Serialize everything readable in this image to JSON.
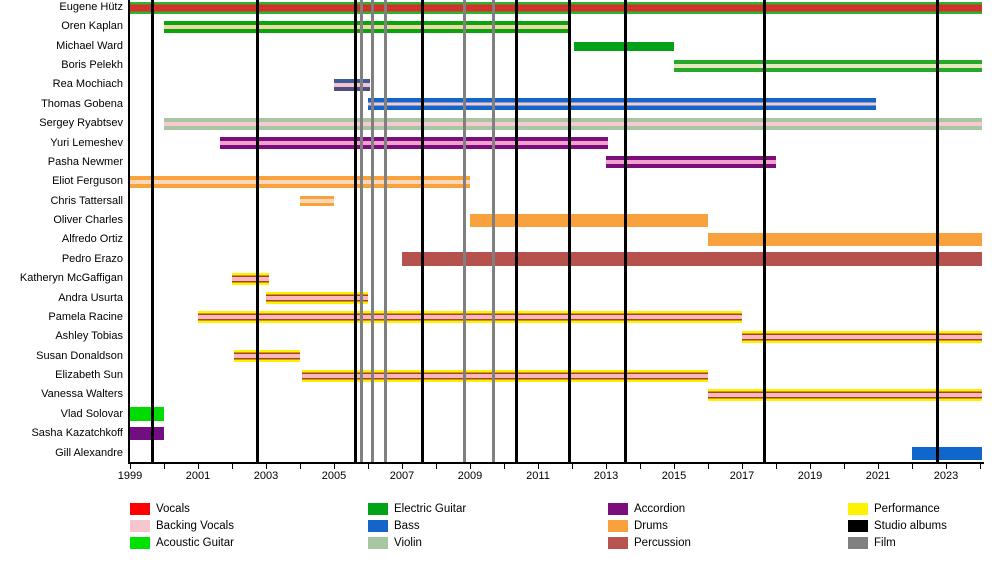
{
  "chart_data": {
    "type": "timeline",
    "description": "Band membership timeline chart, years on x-axis, members on y-axis",
    "x_axis": {
      "min_year": 1999,
      "max_year": 2024.06,
      "tick_interval_years": 1,
      "label_years": [
        1999,
        2001,
        2003,
        2005,
        2007,
        2009,
        2011,
        2013,
        2015,
        2017,
        2019,
        2021,
        2023
      ]
    },
    "members": [
      {
        "name": "Eugene Hütz",
        "from": 1999.0,
        "to": 2024.06,
        "stripes": [
          [
            "#2EB42E",
            2.5
          ],
          [
            "#D1302B",
            7
          ],
          [
            "#2EB42E",
            2.5
          ]
        ]
      },
      {
        "name": "Oren Kaplan",
        "from": 2000.0,
        "to": 2011.9,
        "stripes": [
          [
            "#0CA40C",
            4
          ],
          [
            "#EDD9A8",
            4
          ],
          [
            "#0CA40C",
            4
          ]
        ]
      },
      {
        "name": "Michael Ward",
        "from": 2012.05,
        "to": 2015.0,
        "stripes": [
          [
            "#00A317",
            9
          ]
        ]
      },
      {
        "name": "Boris Pelekh",
        "from": 2015.0,
        "to": 2024.06,
        "stripes": [
          [
            "#28A828",
            4
          ],
          [
            "#E6E9BD",
            4
          ],
          [
            "#28A828",
            4
          ]
        ]
      },
      {
        "name": "Rea Mochiach",
        "from": 2005.0,
        "to": 2006.05,
        "stripes": [
          [
            "#3C5C9E",
            4
          ],
          [
            "#F3C3CA",
            4
          ],
          [
            "#4E4E86",
            4
          ]
        ]
      },
      {
        "name": "Thomas Gobena",
        "from": 2006.0,
        "to": 2020.95,
        "stripes": [
          [
            "#1465C8",
            4.5
          ],
          [
            "#F4CBD2",
            3
          ],
          [
            "#1465C8",
            4.5
          ]
        ]
      },
      {
        "name": "Sergey Ryabtsev",
        "from": 2000.0,
        "to": 2024.06,
        "stripes": [
          [
            "#A8C6A2",
            4
          ],
          [
            "#F7C9D1",
            4
          ],
          [
            "#A8C6A2",
            4
          ]
        ]
      },
      {
        "name": "Yuri Lemeshev",
        "from": 2001.65,
        "to": 2013.05,
        "stripes": [
          [
            "#7C0E7C",
            4
          ],
          [
            "#F2A0CE",
            4
          ],
          [
            "#7C0E7C",
            4
          ]
        ]
      },
      {
        "name": "Pasha Newmer",
        "from": 2013.0,
        "to": 2018.0,
        "stripes": [
          [
            "#7C0E7C",
            4
          ],
          [
            "#F2A0CE",
            4
          ],
          [
            "#7C0E7C",
            4
          ]
        ]
      },
      {
        "name": "Eliot Ferguson",
        "from": 1999.0,
        "to": 2009.0,
        "stripes": [
          [
            "#F9A13C",
            4
          ],
          [
            "#FBD9B8",
            4
          ],
          [
            "#F9A13C",
            4
          ]
        ]
      },
      {
        "name": "Chris Tattersall",
        "from": 2004.0,
        "to": 2005.0,
        "stripes": [
          [
            "#F9A13C",
            3
          ],
          [
            "#FBD9B8",
            4
          ],
          [
            "#F9A13C",
            3
          ]
        ]
      },
      {
        "name": "Oliver Charles",
        "from": 2009.0,
        "to": 2016.0,
        "stripes": [
          [
            "#F9A13C",
            13
          ]
        ]
      },
      {
        "name": "Alfredo Ortiz",
        "from": 2016.0,
        "to": 2024.06,
        "stripes": [
          [
            "#F9A13C",
            13
          ]
        ]
      },
      {
        "name": "Pedro Erazo",
        "from": 2007.0,
        "to": 2024.06,
        "stripes": [
          [
            "#B5524E",
            14
          ]
        ]
      },
      {
        "name": "Katheryn McGaffigan",
        "from": 2002.0,
        "to": 2003.1,
        "stripes": [
          [
            "#FFF200",
            2.5
          ],
          [
            "#A7431F",
            1.5
          ],
          [
            "#F6B9C1",
            4
          ],
          [
            "#A7431F",
            1.5
          ],
          [
            "#FFF200",
            2.5
          ]
        ]
      },
      {
        "name": "Andra Usurta",
        "from": 2003.0,
        "to": 2006.0,
        "stripes": [
          [
            "#FFF200",
            2.5
          ],
          [
            "#A7431F",
            1.5
          ],
          [
            "#F6B9C1",
            4
          ],
          [
            "#A7431F",
            1.5
          ],
          [
            "#FFF200",
            2.5
          ]
        ]
      },
      {
        "name": "Pamela Racine",
        "from": 2001.0,
        "to": 2017.0,
        "stripes": [
          [
            "#FFF200",
            2.5
          ],
          [
            "#A7431F",
            1.5
          ],
          [
            "#F6B9C1",
            4
          ],
          [
            "#A7431F",
            1.5
          ],
          [
            "#FFF200",
            2.5
          ]
        ]
      },
      {
        "name": "Ashley Tobias",
        "from": 2017.0,
        "to": 2024.06,
        "stripes": [
          [
            "#FFF200",
            2.5
          ],
          [
            "#A7431F",
            1.5
          ],
          [
            "#F6B9C1",
            4
          ],
          [
            "#A7431F",
            1.5
          ],
          [
            "#FFF200",
            2.5
          ]
        ]
      },
      {
        "name": "Susan Donaldson",
        "from": 2002.05,
        "to": 2004.0,
        "stripes": [
          [
            "#FFF200",
            2.5
          ],
          [
            "#A7431F",
            1.5
          ],
          [
            "#F6B9C1",
            4
          ],
          [
            "#A7431F",
            1.5
          ],
          [
            "#FFF200",
            2.5
          ]
        ]
      },
      {
        "name": "Elizabeth Sun",
        "from": 2004.05,
        "to": 2016.0,
        "stripes": [
          [
            "#FFF200",
            2.5
          ],
          [
            "#A7431F",
            1.5
          ],
          [
            "#F6B9C1",
            4
          ],
          [
            "#A7431F",
            1.5
          ],
          [
            "#FFF200",
            2.5
          ]
        ]
      },
      {
        "name": "Vanessa Walters",
        "from": 2016.0,
        "to": 2024.06,
        "stripes": [
          [
            "#FFF200",
            2.5
          ],
          [
            "#A7431F",
            1.5
          ],
          [
            "#F6B9C1",
            4
          ],
          [
            "#A7431F",
            1.5
          ],
          [
            "#FFF200",
            2.5
          ]
        ]
      },
      {
        "name": "Vlad Solovar",
        "from": 1999.0,
        "to": 2000.0,
        "stripes": [
          [
            "#00DC00",
            14
          ]
        ]
      },
      {
        "name": "Sasha Kazatchkoff",
        "from": 1999.0,
        "to": 2000.0,
        "stripes": [
          [
            "#730D82",
            13
          ]
        ]
      },
      {
        "name": "Gill Alexandre",
        "from": 2022.0,
        "to": 2024.06,
        "stripes": [
          [
            "#1166CC",
            13
          ]
        ]
      }
    ],
    "markers": {
      "studio_albums": {
        "label": "Studio albums",
        "color": "#000000",
        "years": [
          1999.65,
          2002.74,
          2005.62,
          2007.59,
          2010.38,
          2011.94,
          2013.56,
          2017.65,
          2022.74
        ]
      },
      "films": {
        "label": "Film",
        "color": "#808080",
        "years": [
          2005.82,
          2006.12,
          2006.5,
          2008.85,
          2009.68
        ]
      }
    },
    "legend": {
      "columns": [
        {
          "items": [
            {
              "label": "Vocals",
              "color": "#FF0000"
            },
            {
              "label": "Backing Vocals",
              "color": "#F6C6CE"
            },
            {
              "label": "Acoustic Guitar",
              "color": "#00E100"
            }
          ]
        },
        {
          "items": [
            {
              "label": "Electric Guitar",
              "color": "#00A317"
            },
            {
              "label": "Bass",
              "color": "#1465C8"
            },
            {
              "label": "Violin",
              "color": "#A8C6A2"
            }
          ]
        },
        {
          "items": [
            {
              "label": "Accordion",
              "color": "#7C0E7C"
            },
            {
              "label": "Drums",
              "color": "#F9A23C"
            },
            {
              "label": "Percussion",
              "color": "#B9534F"
            }
          ]
        },
        {
          "items": [
            {
              "label": "Performance",
              "color": "#FFF200"
            },
            {
              "label": "Studio albums",
              "color": "#000000"
            },
            {
              "label": "Film",
              "color": "#808080"
            }
          ]
        }
      ]
    }
  }
}
